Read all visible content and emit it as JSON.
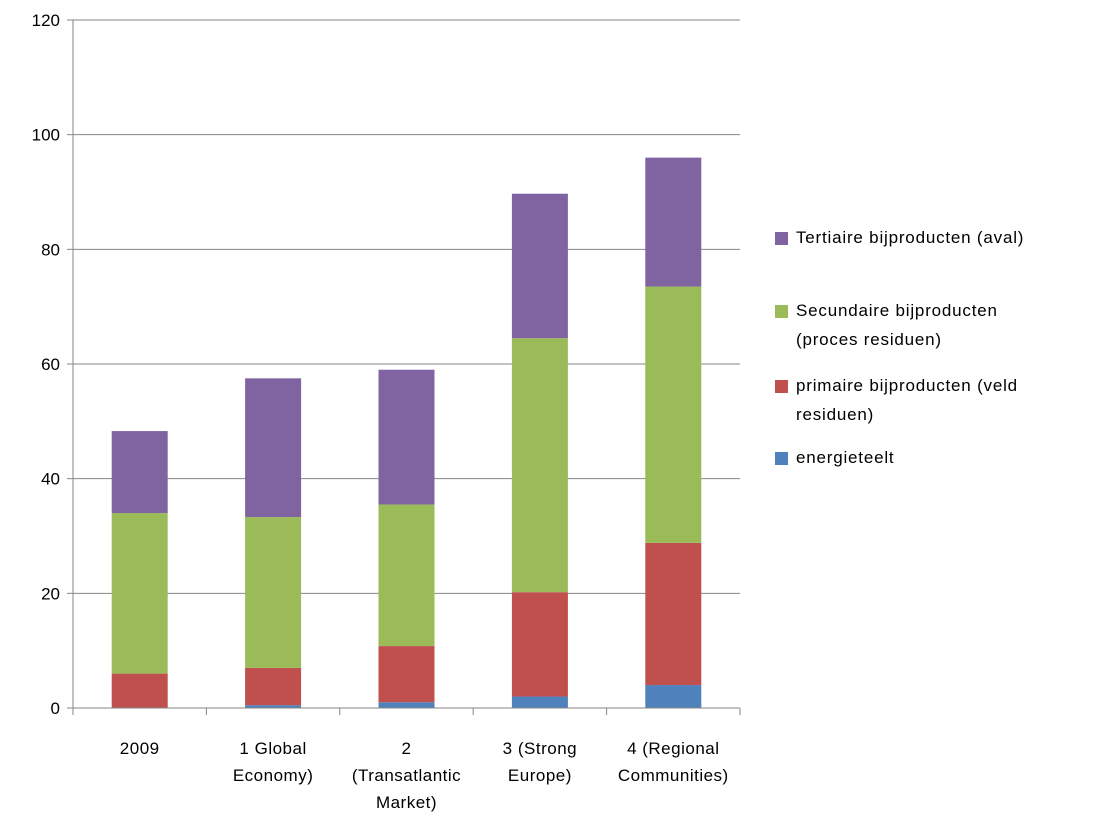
{
  "chart_data": {
    "type": "bar",
    "stacked": true,
    "categories": [
      [
        "2009"
      ],
      [
        "1 Global",
        "Economy)"
      ],
      [
        "2",
        "(Transatlantic",
        "Market)"
      ],
      [
        "3 (Strong",
        "Europe)"
      ],
      [
        "4 (Regional",
        "Communities)"
      ]
    ],
    "series": [
      {
        "name": "energieteelt",
        "color": "#4F81BD",
        "values": [
          0,
          0.5,
          1,
          2,
          4
        ]
      },
      {
        "name": "primaire bijproducten (veld residuen)",
        "legend_lines": [
          "primaire bijproducten (veld",
          "residuen)"
        ],
        "color": "#C0504D",
        "values": [
          6,
          6.5,
          9.8,
          18.2,
          24.8
        ]
      },
      {
        "name": "Secundaire bijproducten (proces residuen)",
        "legend_lines": [
          "Secundaire bijproducten",
          "(proces residuen)"
        ],
        "color": "#9BBB59",
        "values": [
          28,
          26.3,
          24.7,
          44.3,
          44.7
        ]
      },
      {
        "name": "Tertiaire bijproducten (aval)",
        "legend_lines": [
          "Tertiaire bijproducten (aval)"
        ],
        "color": "#8064A2",
        "values": [
          14.3,
          24.2,
          23.5,
          25.2,
          22.5
        ]
      }
    ],
    "ylim": [
      0,
      120
    ],
    "yticks": [
      0,
      20,
      40,
      60,
      80,
      100,
      120
    ],
    "grid": true,
    "legend_position": "right",
    "legend_order": [
      3,
      2,
      1,
      0
    ]
  }
}
